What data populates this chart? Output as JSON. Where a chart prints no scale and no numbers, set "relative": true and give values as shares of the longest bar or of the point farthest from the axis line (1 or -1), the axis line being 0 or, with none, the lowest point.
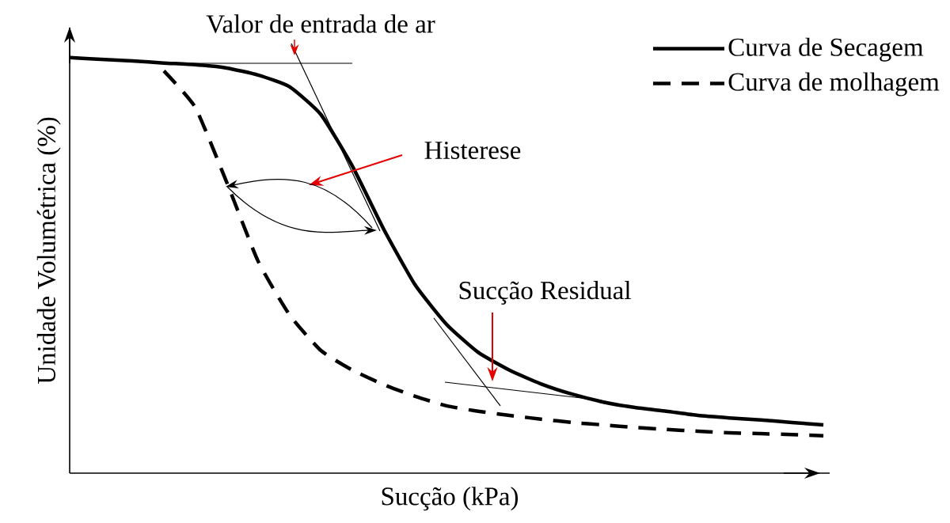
{
  "chart_data": {
    "type": "line",
    "relative": true,
    "xlabel": "Sucção (kPa)",
    "ylabel": "Unidade Volumétrica (%)",
    "categories": [
      null,
      null,
      null,
      null,
      null,
      null,
      null,
      null,
      null,
      null,
      null,
      null,
      null,
      null,
      null,
      null,
      null,
      null,
      null,
      null,
      null,
      null,
      null,
      null,
      null
    ],
    "series": [
      {
        "name": "Curva de Secagem",
        "color": "#000000",
        "line_style": "solid",
        "values": [
          1.0,
          0.996,
          0.992,
          0.987,
          0.983,
          0.975,
          0.958,
          0.93,
          0.863,
          0.739,
          0.587,
          0.453,
          0.358,
          0.291,
          0.248,
          0.215,
          0.19,
          0.171,
          0.158,
          0.149,
          0.139,
          0.133,
          0.128,
          0.122,
          0.116
        ]
      },
      {
        "name": "Curva de molhagem",
        "color": "#000000",
        "line_style": "dashed",
        "values": [
          null,
          null,
          null,
          0.968,
          0.88,
          0.7,
          0.51,
          0.381,
          0.295,
          0.248,
          0.213,
          0.185,
          0.162,
          0.149,
          0.139,
          0.13,
          0.122,
          0.116,
          0.11,
          0.105,
          0.101,
          0.097,
          0.095,
          0.093,
          0.09
        ]
      }
    ],
    "marker": "none",
    "legend": "top right",
    "annotations": [
      "Valor de entrada de ar",
      "Histerese",
      "Sucção Residual"
    ]
  }
}
